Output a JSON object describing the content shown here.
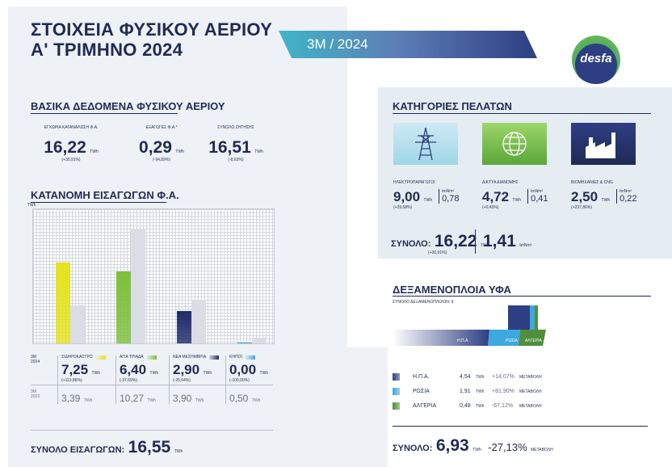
{
  "header": {
    "title_line1": "ΣΤΟΙΧΕΙΑ ΦΥΣΙΚΟΥ ΑΕΡΙΟΥ",
    "title_line2": "Α' ΤΡΙΜΗΝΟ 2024",
    "period": "3M / 2024",
    "logo": "desfa"
  },
  "basic": {
    "heading": "ΒΑΣΙΚΑ ΔΕΔΟΜΕΝΑ ΦΥΣΙΚΟΥ ΑΕΡΙΟΥ",
    "items": [
      {
        "label": "ΕΓΧΩΡΙΑ ΚΑΤΑΝΑΛΩΣΗ Φ.Α.",
        "value": "16,22",
        "unit": "TWh",
        "change": "(+30,91%)"
      },
      {
        "label": "ΕΞΑΓΩΓΕΣ Φ.Α.*",
        "value": "0,29",
        "unit": "TWh",
        "change": "(-94,89%)"
      },
      {
        "label": "ΣΥΝΟΛΟ ΖΗΤΗΣΗΣ",
        "value": "16,51",
        "unit": "TWh",
        "change": "(-8,63%)"
      }
    ]
  },
  "imports": {
    "heading": "ΚΑΤΑΝΟΜΗ ΕΙΣΑΓΩΓΩΝ Φ.Α.",
    "unit": "TWh",
    "year_now": "3M\n2024",
    "year_prev": "3M\n2023",
    "points": [
      {
        "name": "ΣΙΔΗΡΟΚΑΣΤΡΟ",
        "value": "7,25",
        "unit": "TWh",
        "change": "(+113,86%)",
        "prev": "3,39",
        "color": "#e4e31c"
      },
      {
        "name": "ΑΓΙΑ ΤΡΙΑΔΑ",
        "value": "6,40",
        "unit": "TWh",
        "change": "(-37,69%)",
        "prev": "10,27",
        "color": "#7dbf3a"
      },
      {
        "name": "ΝΕΑ ΜΕΣΗΜΒΡΙΑ",
        "value": "2,90",
        "unit": "TWh",
        "change": "(-25,64%)",
        "prev": "3,90",
        "color": "#1f2a6a"
      },
      {
        "name": "ΚΗΠΟΙ",
        "value": "0,00",
        "unit": "TWh",
        "change": "(-100,00%)",
        "prev": "0,50",
        "color": "#3ea8e0"
      }
    ],
    "total_label": "ΣΥΝΟΛΟ ΕΙΣΑΓΩΓΩΝ:",
    "total_value": "16,55",
    "total_unit": "TWh"
  },
  "chart_data": {
    "type": "bar",
    "categories": [
      "ΣΙΔΗΡΟΚΑΣΤΡΟ",
      "ΑΓΙΑ ΤΡΙΑΔΑ",
      "ΝΕΑ ΜΕΣΗΜΒΡΙΑ",
      "ΚΗΠΟΙ"
    ],
    "series": [
      {
        "name": "3M 2024",
        "values": [
          7.25,
          6.4,
          2.9,
          0.0
        ]
      },
      {
        "name": "3M 2023",
        "values": [
          3.39,
          10.27,
          3.9,
          0.5
        ]
      }
    ],
    "ylabel": "TWh",
    "ylim": [
      0,
      12
    ]
  },
  "customers": {
    "heading": "ΚΑΤΗΓΟΡΙΕΣ ΠΕΛΑΤΩΝ",
    "items": [
      {
        "label": "ΗΛΕΚΤΡΟΠΑΡΑΓΩΓΟΙ",
        "value": "9,00",
        "unit": "TWh",
        "change": "(+29,58%)",
        "bnm_label": "bnNm³",
        "bnm": "0,78",
        "icon": "power-tower-icon"
      },
      {
        "label": "ΔΙΚΤΥΑ ΔΙΑΝΟΜΗΣ",
        "value": "4,72",
        "unit": "TWh",
        "change": "(+0,43%)",
        "bnm_label": "bnNm³",
        "bnm": "0,41",
        "icon": "network-globe-icon"
      },
      {
        "label": "ΒΙΟΜΗΧΑΝΙΕΣ & CNG",
        "value": "2,50",
        "unit": "TWh",
        "change": "(+237,86%)",
        "bnm_label": "bnNm³",
        "bnm": "0,22",
        "icon": "factory-icon"
      }
    ],
    "total_label": "ΣΥΝΟΛΟ:",
    "total_value": "16,22",
    "total_unit": "TWh",
    "total_change": "(+30,91%)",
    "total_bnm": "1,41",
    "total_bnm_unit": "bnNm³"
  },
  "lng": {
    "heading": "ΔΕΞΑΜΕΝΟΠΛΟΙΑ ΥΦΑ",
    "subheading": "ΣΥΝΟΛΟ ΔΕΞΑΜΕΝΟΠΛΟΙΩΝ: 9",
    "ship_labels": [
      "Η.Π.Α.",
      "ΡΩΣΙΑ",
      "ΑΛΓΕΡΙΑ"
    ],
    "rows": [
      {
        "name": "Η.Π.Α.",
        "value": "4,54",
        "unit": "TWh",
        "change": "+14,07%",
        "suffix": "ΜΕΤΑΒΟΛΗ",
        "color": "#2e3e83"
      },
      {
        "name": "ΡΩΣΙΑ",
        "value": "1,91",
        "unit": "TWh",
        "change": "+81,90%",
        "suffix": "ΜΕΤΑΒΟΛΗ",
        "color": "#3ea8e0"
      },
      {
        "name": "ΑΛΓΕΡΙΑ",
        "value": "0,48",
        "unit": "TWh",
        "change": "-67,12%",
        "suffix": "ΜΕΤΑΒΟΛΗ",
        "color": "#4f8f3a"
      }
    ],
    "total_label": "ΣΥΝΟΛΟ:",
    "total_value": "6,93",
    "total_unit": "TWh",
    "total_change": "-27,13%",
    "total_suffix": "ΜΕΤΑΒΟΛΗ"
  }
}
